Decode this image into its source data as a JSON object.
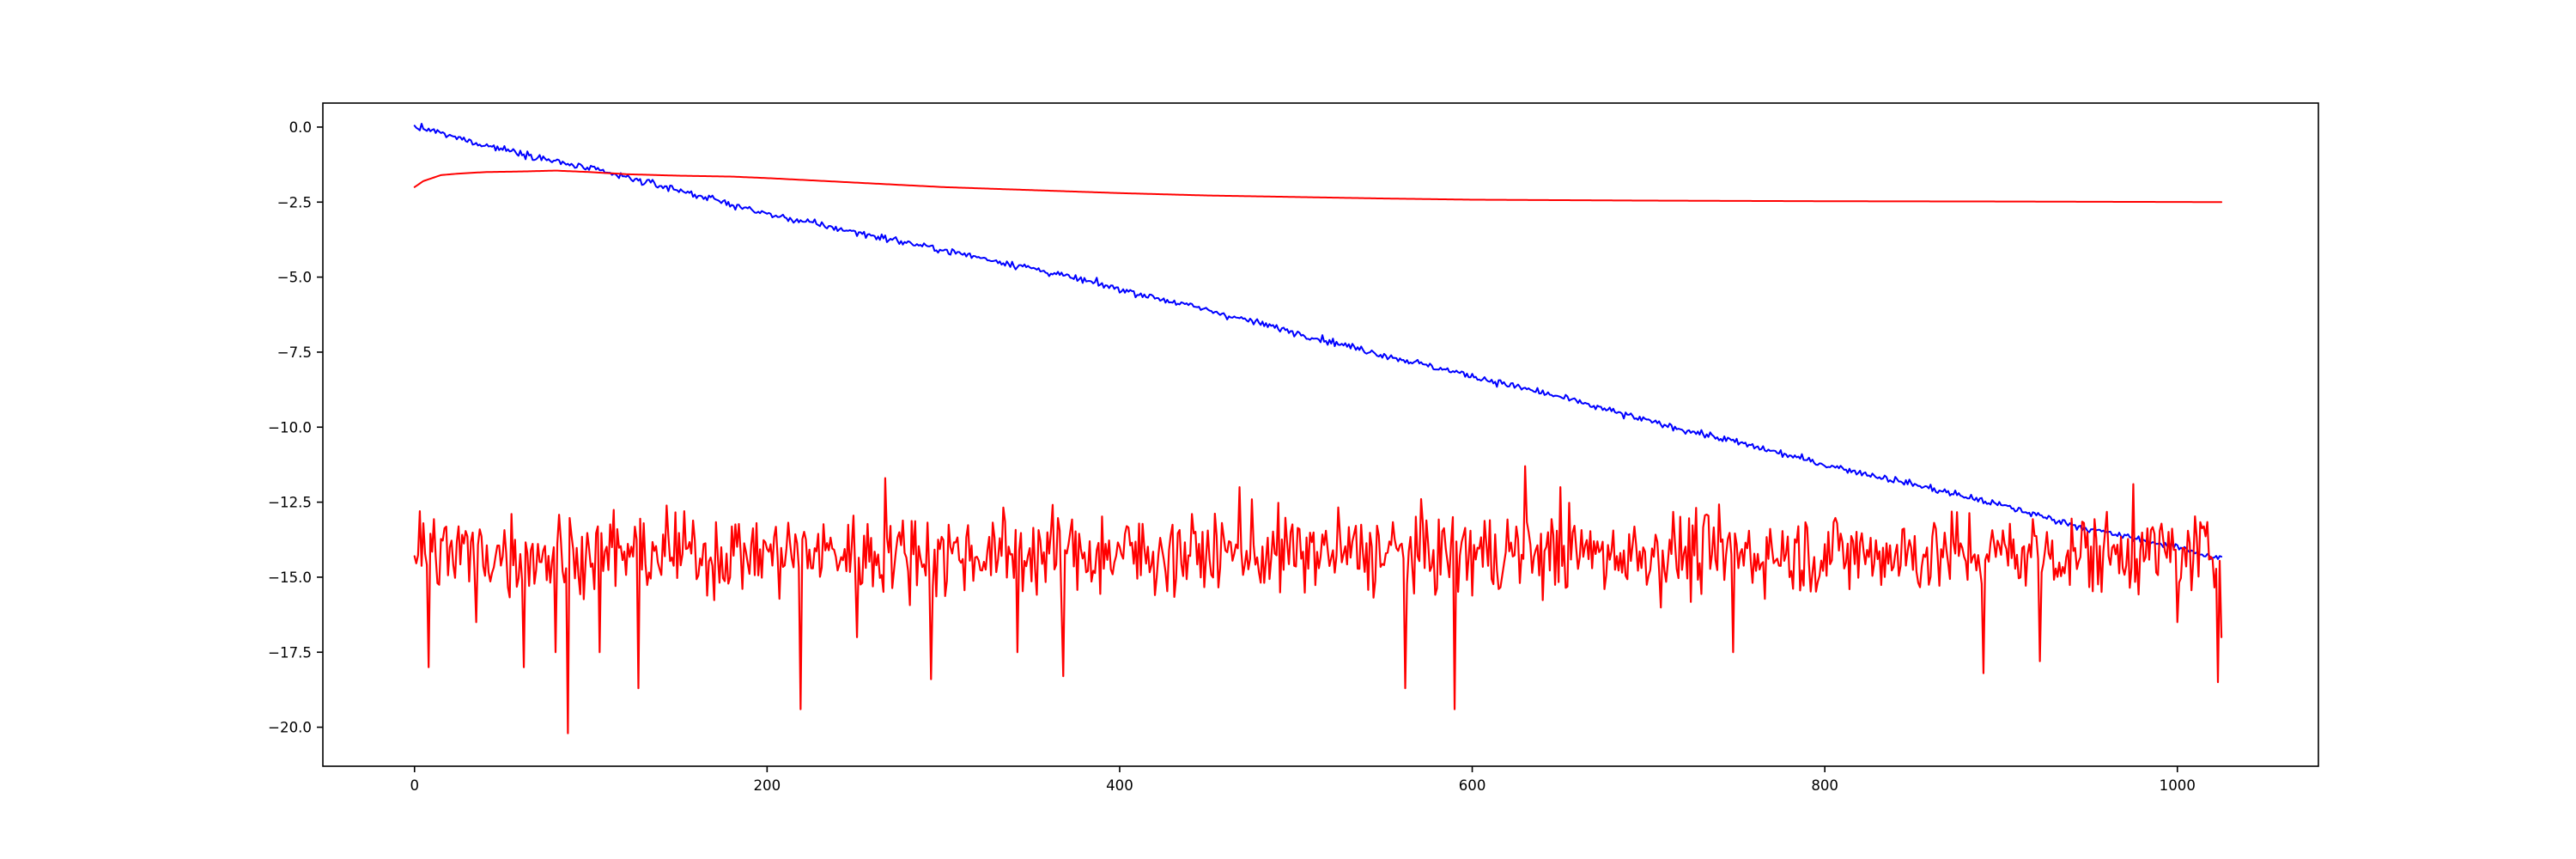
{
  "chart_data": {
    "type": "line",
    "title": "",
    "xlabel": "",
    "ylabel": "",
    "xlim": [
      -52,
      1080
    ],
    "ylim": [
      -21.3,
      0.8
    ],
    "grid": false,
    "legend": "none",
    "x_ticks": [
      {
        "value": 0,
        "label": "0"
      },
      {
        "value": 200,
        "label": "200"
      },
      {
        "value": 400,
        "label": "400"
      },
      {
        "value": 600,
        "label": "600"
      },
      {
        "value": 800,
        "label": "800"
      },
      {
        "value": 1000,
        "label": "1000"
      }
    ],
    "y_ticks": [
      {
        "value": 0.0,
        "label": "0.0"
      },
      {
        "value": -2.5,
        "label": "−2.5"
      },
      {
        "value": -5.0,
        "label": "−5.0"
      },
      {
        "value": -7.5,
        "label": "−7.5"
      },
      {
        "value": -10.0,
        "label": "−10.0"
      },
      {
        "value": -12.5,
        "label": "−12.5"
      },
      {
        "value": -15.0,
        "label": "−15.0"
      },
      {
        "value": -17.5,
        "label": "−17.5"
      },
      {
        "value": -20.0,
        "label": "−20.0"
      }
    ],
    "series": [
      {
        "color": "#0000ff",
        "points": [
          [
            0,
            0.0
          ],
          [
            10,
            -0.12
          ],
          [
            20,
            -0.3
          ],
          [
            40,
            -0.6
          ],
          [
            60,
            -0.85
          ],
          [
            80,
            -1.15
          ],
          [
            100,
            -1.4
          ],
          [
            150,
            -2.1
          ],
          [
            200,
            -2.9
          ],
          [
            250,
            -3.5
          ],
          [
            300,
            -4.1
          ],
          [
            350,
            -4.7
          ],
          [
            400,
            -5.4
          ],
          [
            450,
            -6.1
          ],
          [
            500,
            -6.85
          ],
          [
            550,
            -7.6
          ],
          [
            600,
            -8.3
          ],
          [
            650,
            -9.0
          ],
          [
            700,
            -9.8
          ],
          [
            750,
            -10.5
          ],
          [
            800,
            -11.25
          ],
          [
            850,
            -11.9
          ],
          [
            900,
            -12.6
          ],
          [
            950,
            -13.4
          ],
          [
            1000,
            -14.0
          ],
          [
            1025,
            -14.4
          ]
        ],
        "noise": 0.08
      },
      {
        "color": "#ff0000",
        "points": [
          [
            0,
            -2.0
          ],
          [
            5,
            -1.8
          ],
          [
            10,
            -1.7
          ],
          [
            15,
            -1.6
          ],
          [
            25,
            -1.55
          ],
          [
            40,
            -1.5
          ],
          [
            60,
            -1.48
          ],
          [
            80,
            -1.45
          ],
          [
            100,
            -1.5
          ],
          [
            120,
            -1.57
          ],
          [
            150,
            -1.62
          ],
          [
            180,
            -1.65
          ],
          [
            200,
            -1.7
          ],
          [
            250,
            -1.85
          ],
          [
            300,
            -2.0
          ],
          [
            350,
            -2.1
          ],
          [
            400,
            -2.2
          ],
          [
            450,
            -2.28
          ],
          [
            500,
            -2.33
          ],
          [
            550,
            -2.38
          ],
          [
            600,
            -2.42
          ],
          [
            700,
            -2.45
          ],
          [
            800,
            -2.47
          ],
          [
            900,
            -2.48
          ],
          [
            1025,
            -2.5
          ]
        ],
        "noise": 0.0
      },
      {
        "color": "#ff0000",
        "kind": "noisy",
        "x_start": 0,
        "x_end": 1025,
        "mean": -14.2,
        "spread": 0.95,
        "min": -20.2,
        "max": -11.3,
        "spikes": [
          [
            0,
            -14.3
          ],
          [
            3,
            -12.8
          ],
          [
            5,
            -13.2
          ],
          [
            8,
            -18.0
          ],
          [
            35,
            -16.5
          ],
          [
            62,
            -18.0
          ],
          [
            80,
            -17.5
          ],
          [
            87,
            -20.2
          ],
          [
            105,
            -17.5
          ],
          [
            127,
            -18.7
          ],
          [
            219,
            -19.4
          ],
          [
            251,
            -17.0
          ],
          [
            267,
            -11.7
          ],
          [
            293,
            -18.4
          ],
          [
            342,
            -17.5
          ],
          [
            368,
            -18.3
          ],
          [
            468,
            -12.0
          ],
          [
            562,
            -18.7
          ],
          [
            590,
            -19.4
          ],
          [
            630,
            -11.3
          ],
          [
            650,
            -12.0
          ],
          [
            748,
            -17.5
          ],
          [
            890,
            -18.2
          ],
          [
            922,
            -17.8
          ],
          [
            975,
            -11.9
          ],
          [
            1000,
            -16.5
          ],
          [
            1023,
            -18.5
          ],
          [
            1025,
            -17.0
          ]
        ]
      }
    ]
  }
}
